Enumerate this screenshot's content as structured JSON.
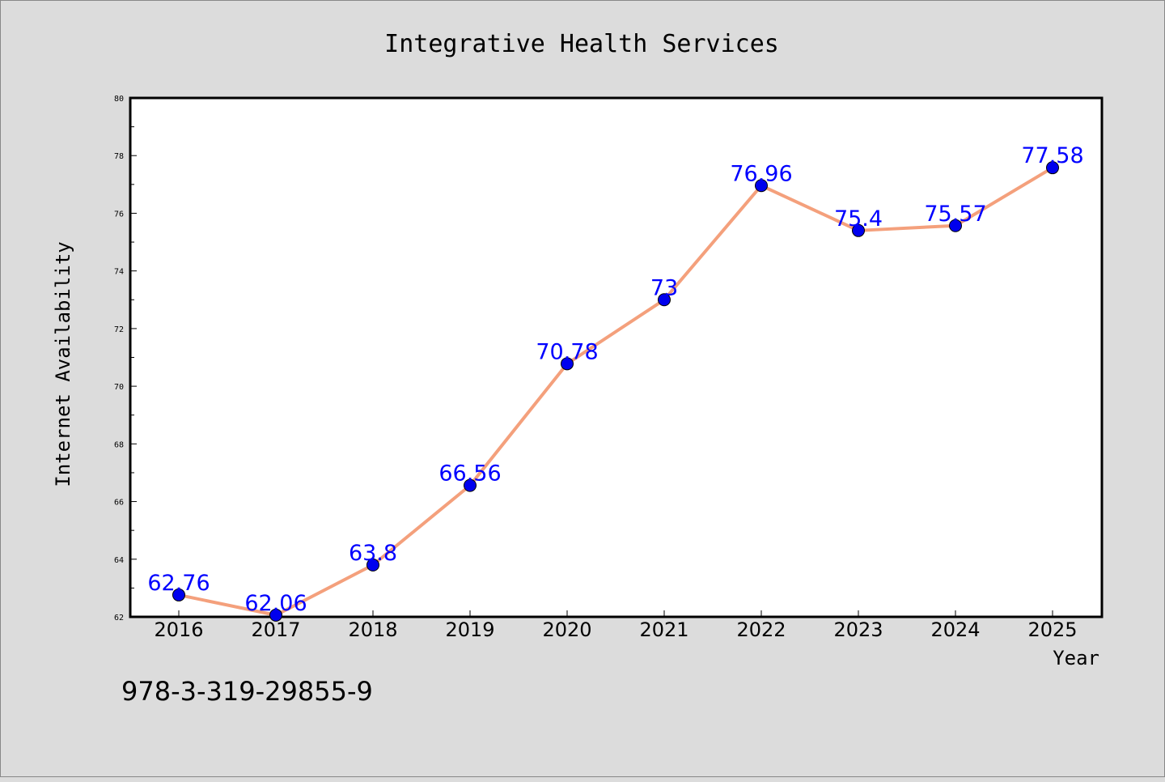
{
  "chart_data": {
    "type": "line",
    "title": "Integrative Health Services",
    "xlabel": "Year",
    "ylabel": "Internet Availability",
    "categories": [
      "2016",
      "2017",
      "2018",
      "2019",
      "2020",
      "2021",
      "2022",
      "2023",
      "2024",
      "2025"
    ],
    "series": [
      {
        "values": [
          62.76,
          62.06,
          63.8,
          66.56,
          70.78,
          73,
          76.96,
          75.4,
          75.57,
          77.58
        ],
        "labels": [
          "62.76",
          "62.06",
          "63.8",
          "66.56",
          "70.78",
          "73",
          "76.96",
          "75.4",
          "75.57",
          "77.58"
        ],
        "line_color": "#f4a07c",
        "marker_color": "#0000ee"
      }
    ],
    "ylim": [
      62,
      80
    ],
    "y_ticks": [
      "62",
      "64",
      "66",
      "68",
      "70",
      "72",
      "74",
      "76",
      "78",
      "80"
    ],
    "grid": false,
    "legend": "none",
    "label_color": "#0000ff"
  },
  "footnote": "978-3-319-29855-9"
}
